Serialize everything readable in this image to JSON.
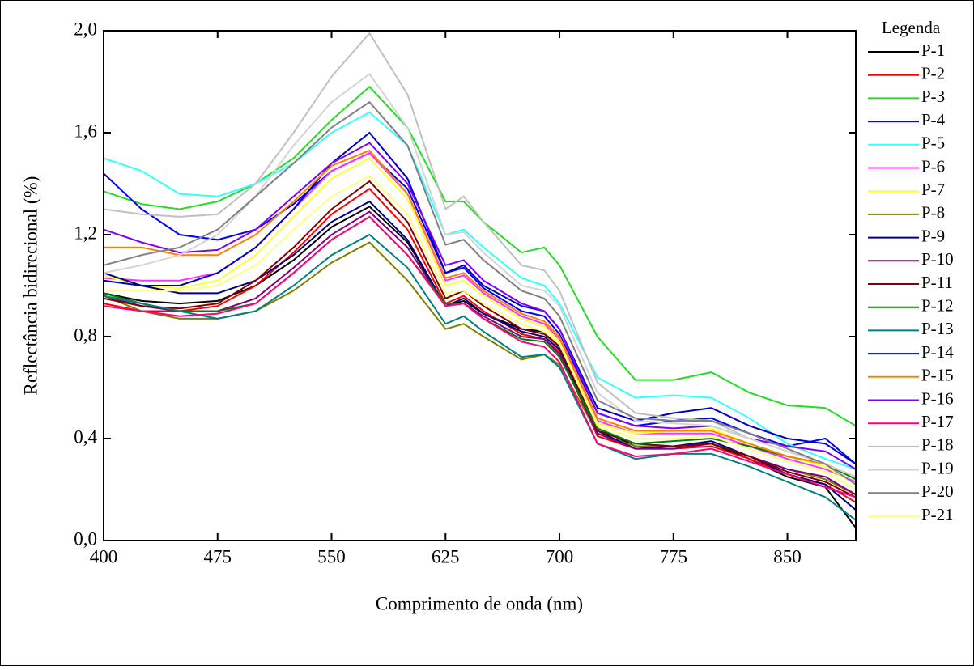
{
  "chart_data": {
    "type": "line",
    "xlabel": "Comprimento de onda (nm)",
    "ylabel": "Reflectância bidirecional (%)",
    "legend_title": "Legenda",
    "legend_position": "outside-right",
    "x": [
      400,
      425,
      450,
      475,
      500,
      525,
      550,
      575,
      600,
      625,
      637,
      650,
      675,
      690,
      700,
      725,
      750,
      775,
      800,
      825,
      850,
      875,
      895
    ],
    "xlim": [
      400,
      895
    ],
    "xticks": [
      400,
      475,
      550,
      625,
      700,
      775,
      850
    ],
    "ylim": [
      0,
      2
    ],
    "yticks": [
      {
        "value": 0,
        "label": "0,0"
      },
      {
        "value": 0.4,
        "label": "0,4"
      },
      {
        "value": 0.8,
        "label": "0,8"
      },
      {
        "value": 1.2,
        "label": "1,2"
      },
      {
        "value": 1.6,
        "label": "1,6"
      },
      {
        "value": 2.0,
        "label": "2,0"
      }
    ],
    "series": [
      {
        "name": "P-1",
        "color": "#000000",
        "values": [
          0.97,
          0.94,
          0.93,
          0.94,
          1.0,
          1.1,
          1.23,
          1.31,
          1.17,
          0.92,
          0.94,
          0.89,
          0.83,
          0.82,
          0.76,
          0.44,
          0.37,
          0.37,
          0.38,
          0.32,
          0.25,
          0.21,
          0.05
        ]
      },
      {
        "name": "P-2",
        "color": "#ff0000",
        "values": [
          0.93,
          0.9,
          0.9,
          0.92,
          1.0,
          1.13,
          1.28,
          1.38,
          1.22,
          0.93,
          0.96,
          0.9,
          0.81,
          0.79,
          0.74,
          0.41,
          0.36,
          0.36,
          0.37,
          0.32,
          0.26,
          0.22,
          0.15
        ]
      },
      {
        "name": "P-3",
        "color": "#22dd22",
        "values": [
          1.37,
          1.32,
          1.3,
          1.33,
          1.4,
          1.5,
          1.65,
          1.78,
          1.62,
          1.33,
          1.33,
          1.25,
          1.13,
          1.15,
          1.08,
          0.8,
          0.63,
          0.63,
          0.66,
          0.58,
          0.53,
          0.52,
          0.45
        ]
      },
      {
        "name": "P-4",
        "color": "#0000ff",
        "values": [
          1.44,
          1.3,
          1.2,
          1.18,
          1.22,
          1.32,
          1.45,
          1.52,
          1.38,
          1.05,
          1.07,
          0.99,
          0.9,
          0.88,
          0.81,
          0.5,
          0.45,
          0.47,
          0.48,
          0.42,
          0.37,
          0.4,
          0.3
        ]
      },
      {
        "name": "P-5",
        "color": "#33ffff",
        "values": [
          1.5,
          1.45,
          1.36,
          1.35,
          1.4,
          1.48,
          1.6,
          1.68,
          1.55,
          1.2,
          1.22,
          1.15,
          1.03,
          1.0,
          0.93,
          0.64,
          0.56,
          0.57,
          0.56,
          0.48,
          0.38,
          0.32,
          0.28
        ]
      },
      {
        "name": "P-6",
        "color": "#ff33ff",
        "values": [
          1.03,
          1.02,
          1.02,
          1.05,
          1.15,
          1.3,
          1.45,
          1.52,
          1.36,
          1.02,
          1.04,
          0.97,
          0.88,
          0.85,
          0.79,
          0.47,
          0.42,
          0.42,
          0.42,
          0.37,
          0.32,
          0.28,
          0.23
        ]
      },
      {
        "name": "P-7",
        "color": "#ffff33",
        "values": [
          1.04,
          1.0,
          0.99,
          1.02,
          1.12,
          1.27,
          1.42,
          1.5,
          1.34,
          1.0,
          1.02,
          0.96,
          0.87,
          0.84,
          0.78,
          0.46,
          0.42,
          0.43,
          0.44,
          0.38,
          0.33,
          0.29,
          0.22
        ]
      },
      {
        "name": "P-8",
        "color": "#808000",
        "values": [
          0.96,
          0.9,
          0.87,
          0.87,
          0.9,
          0.98,
          1.09,
          1.17,
          1.02,
          0.83,
          0.85,
          0.8,
          0.71,
          0.73,
          0.69,
          0.42,
          0.37,
          0.37,
          0.38,
          0.33,
          0.28,
          0.24,
          0.18
        ]
      },
      {
        "name": "P-9",
        "color": "#000080",
        "values": [
          1.05,
          1.0,
          0.97,
          0.97,
          1.02,
          1.12,
          1.25,
          1.33,
          1.18,
          0.92,
          0.95,
          0.89,
          0.82,
          0.8,
          0.75,
          0.43,
          0.36,
          0.37,
          0.39,
          0.33,
          0.26,
          0.22,
          0.12
        ]
      },
      {
        "name": "P-10",
        "color": "#800080",
        "values": [
          0.96,
          0.92,
          0.9,
          0.9,
          0.95,
          1.07,
          1.2,
          1.29,
          1.15,
          0.92,
          0.93,
          0.88,
          0.8,
          0.79,
          0.73,
          0.42,
          0.36,
          0.36,
          0.38,
          0.33,
          0.28,
          0.25,
          0.18
        ]
      },
      {
        "name": "P-11",
        "color": "#800000",
        "values": [
          0.95,
          0.92,
          0.91,
          0.93,
          1.02,
          1.15,
          1.3,
          1.41,
          1.25,
          0.95,
          0.98,
          0.92,
          0.83,
          0.81,
          0.76,
          0.43,
          0.38,
          0.37,
          0.38,
          0.33,
          0.27,
          0.23,
          0.17
        ]
      },
      {
        "name": "P-12",
        "color": "#008000",
        "values": [
          0.97,
          0.93,
          0.9,
          0.9,
          0.93,
          1.05,
          1.18,
          1.27,
          1.12,
          0.93,
          0.93,
          0.87,
          0.79,
          0.78,
          0.72,
          0.44,
          0.38,
          0.39,
          0.4,
          0.37,
          0.33,
          0.3,
          0.24
        ]
      },
      {
        "name": "P-13",
        "color": "#008080",
        "values": [
          0.96,
          0.93,
          0.9,
          0.87,
          0.9,
          1.0,
          1.12,
          1.2,
          1.07,
          0.85,
          0.88,
          0.82,
          0.72,
          0.73,
          0.68,
          0.38,
          0.32,
          0.34,
          0.34,
          0.29,
          0.23,
          0.17,
          0.08
        ]
      },
      {
        "name": "P-14",
        "color": "#0000c0",
        "values": [
          1.02,
          1.0,
          1.0,
          1.05,
          1.15,
          1.3,
          1.48,
          1.6,
          1.42,
          1.05,
          1.08,
          1.0,
          0.92,
          0.9,
          0.83,
          0.52,
          0.47,
          0.5,
          0.52,
          0.45,
          0.4,
          0.38,
          0.3
        ]
      },
      {
        "name": "P-15",
        "color": "#ff8000",
        "values": [
          1.15,
          1.15,
          1.12,
          1.12,
          1.2,
          1.33,
          1.47,
          1.53,
          1.36,
          1.03,
          1.05,
          0.98,
          0.89,
          0.86,
          0.8,
          0.48,
          0.43,
          0.43,
          0.43,
          0.38,
          0.33,
          0.3,
          0.25
        ]
      },
      {
        "name": "P-16",
        "color": "#8000ff",
        "values": [
          1.22,
          1.17,
          1.13,
          1.14,
          1.22,
          1.35,
          1.48,
          1.56,
          1.4,
          1.08,
          1.1,
          1.02,
          0.93,
          0.9,
          0.83,
          0.5,
          0.45,
          0.44,
          0.45,
          0.4,
          0.37,
          0.35,
          0.28
        ]
      },
      {
        "name": "P-17",
        "color": "#ff0080",
        "values": [
          0.92,
          0.9,
          0.88,
          0.89,
          0.93,
          1.05,
          1.18,
          1.27,
          1.12,
          0.92,
          0.93,
          0.87,
          0.78,
          0.76,
          0.7,
          0.38,
          0.33,
          0.34,
          0.36,
          0.31,
          0.26,
          0.21,
          0.17
        ]
      },
      {
        "name": "P-18",
        "color": "#c0c0c0",
        "values": [
          1.3,
          1.28,
          1.27,
          1.28,
          1.4,
          1.6,
          1.82,
          1.99,
          1.75,
          1.3,
          1.35,
          1.25,
          1.08,
          1.06,
          0.98,
          0.62,
          0.5,
          0.48,
          0.47,
          0.4,
          0.35,
          0.3,
          0.25
        ]
      },
      {
        "name": "P-19",
        "color": "#d4d4d4",
        "values": [
          1.05,
          1.08,
          1.12,
          1.2,
          1.35,
          1.55,
          1.72,
          1.83,
          1.62,
          1.2,
          1.21,
          1.13,
          1.0,
          0.98,
          0.92,
          0.58,
          0.47,
          0.46,
          0.45,
          0.4,
          0.35,
          0.3,
          0.25
        ]
      },
      {
        "name": "P-20",
        "color": "#808080",
        "values": [
          1.08,
          1.12,
          1.15,
          1.22,
          1.35,
          1.48,
          1.62,
          1.72,
          1.55,
          1.16,
          1.18,
          1.1,
          0.98,
          0.95,
          0.88,
          0.55,
          0.48,
          0.47,
          0.47,
          0.42,
          0.36,
          0.3,
          0.22
        ]
      },
      {
        "name": "P-21",
        "color": "#ffff80",
        "values": [
          0.98,
          0.98,
          0.98,
          1.0,
          1.08,
          1.22,
          1.35,
          1.43,
          1.28,
          0.97,
          0.98,
          0.93,
          0.85,
          0.82,
          0.77,
          0.45,
          0.4,
          0.4,
          0.41,
          0.36,
          0.31,
          0.27,
          0.2
        ]
      }
    ]
  }
}
